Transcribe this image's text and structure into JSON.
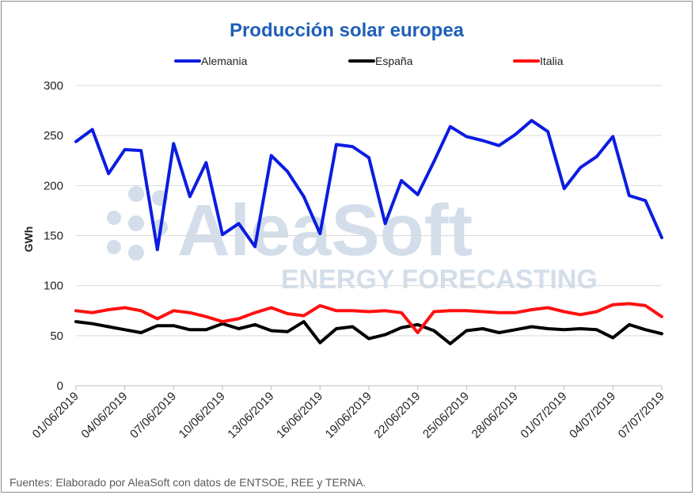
{
  "chart_data": {
    "type": "line",
    "title": "Producción solar europea",
    "ylabel": "GWh",
    "xlabel": "",
    "ylim": [
      0,
      300
    ],
    "yticks": [
      0,
      50,
      100,
      150,
      200,
      250,
      300
    ],
    "grid": "horizontal",
    "legend_position": "top",
    "x": [
      "01/06/2019",
      "02/06/2019",
      "03/06/2019",
      "04/06/2019",
      "05/06/2019",
      "06/06/2019",
      "07/06/2019",
      "08/06/2019",
      "09/06/2019",
      "10/06/2019",
      "11/06/2019",
      "12/06/2019",
      "13/06/2019",
      "14/06/2019",
      "15/06/2019",
      "16/06/2019",
      "17/06/2019",
      "18/06/2019",
      "19/06/2019",
      "20/06/2019",
      "21/06/2019",
      "22/06/2019",
      "23/06/2019",
      "24/06/2019",
      "25/06/2019",
      "26/06/2019",
      "27/06/2019",
      "28/06/2019",
      "29/06/2019",
      "30/06/2019",
      "01/07/2019",
      "02/07/2019",
      "03/07/2019",
      "04/07/2019",
      "05/07/2019",
      "06/07/2019",
      "07/07/2019"
    ],
    "xtick_labels": [
      "01/06/2019",
      "04/06/2019",
      "07/06/2019",
      "10/06/2019",
      "13/06/2019",
      "16/06/2019",
      "19/06/2019",
      "22/06/2019",
      "25/06/2019",
      "28/06/2019",
      "01/07/2019",
      "04/07/2019",
      "07/07/2019"
    ],
    "series": [
      {
        "name": "Alemania",
        "color": "#0b1de0",
        "values": [
          244,
          256,
          212,
          236,
          235,
          136,
          242,
          189,
          223,
          151,
          162,
          139,
          230,
          214,
          189,
          152,
          241,
          239,
          228,
          162,
          205,
          191,
          224,
          259,
          249,
          245,
          240,
          251,
          265,
          254,
          197,
          218,
          229,
          249,
          190,
          185,
          148
        ]
      },
      {
        "name": "España",
        "color": "#000000",
        "values": [
          64,
          62,
          59,
          56,
          53,
          60,
          60,
          56,
          56,
          62,
          57,
          61,
          55,
          54,
          64,
          43,
          57,
          59,
          47,
          51,
          58,
          61,
          55,
          42,
          55,
          57,
          53,
          56,
          59,
          57,
          56,
          57,
          56,
          48,
          61,
          56,
          52
        ]
      },
      {
        "name": "Italia",
        "color": "#ff1010",
        "values": [
          75,
          73,
          76,
          78,
          75,
          67,
          75,
          73,
          69,
          64,
          67,
          73,
          78,
          72,
          70,
          80,
          75,
          75,
          74,
          75,
          73,
          53,
          74,
          75,
          75,
          74,
          73,
          73,
          76,
          78,
          74,
          71,
          74,
          81,
          82,
          80,
          69
        ]
      }
    ]
  },
  "watermark": {
    "brand": "AleaSoft",
    "tagline": "ENERGY FORECASTING"
  },
  "footer": "Fuentes: Elaborado por AleaSoft con datos de ENTSOE, REE y TERNA."
}
